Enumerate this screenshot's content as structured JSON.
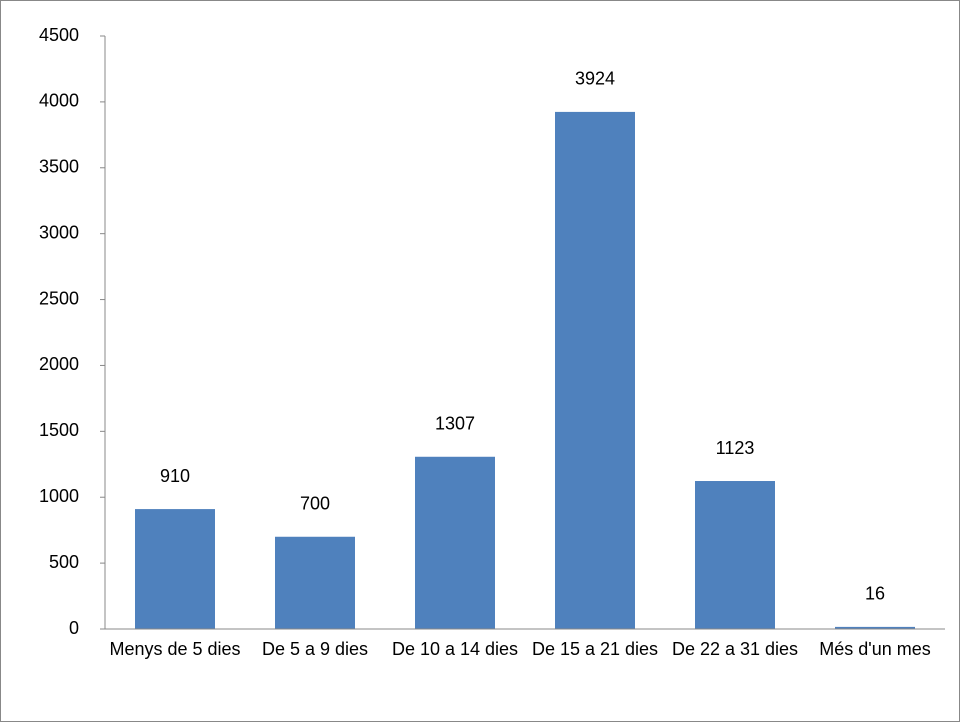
{
  "chart_data": {
    "type": "bar",
    "categories": [
      "Menys de 5 dies",
      "De 5 a 9 dies",
      "De 10 a 14 dies",
      "De 15 a 21 dies",
      "De 22 a 31 dies",
      "Més d'un mes"
    ],
    "values": [
      910,
      700,
      1307,
      3924,
      1123,
      16
    ],
    "color": "#4f81bd",
    "ylim": [
      0,
      4500
    ],
    "yticks": [
      0,
      500,
      1000,
      1500,
      2000,
      2500,
      3000,
      3500,
      4000,
      4500
    ],
    "grid": false
  }
}
